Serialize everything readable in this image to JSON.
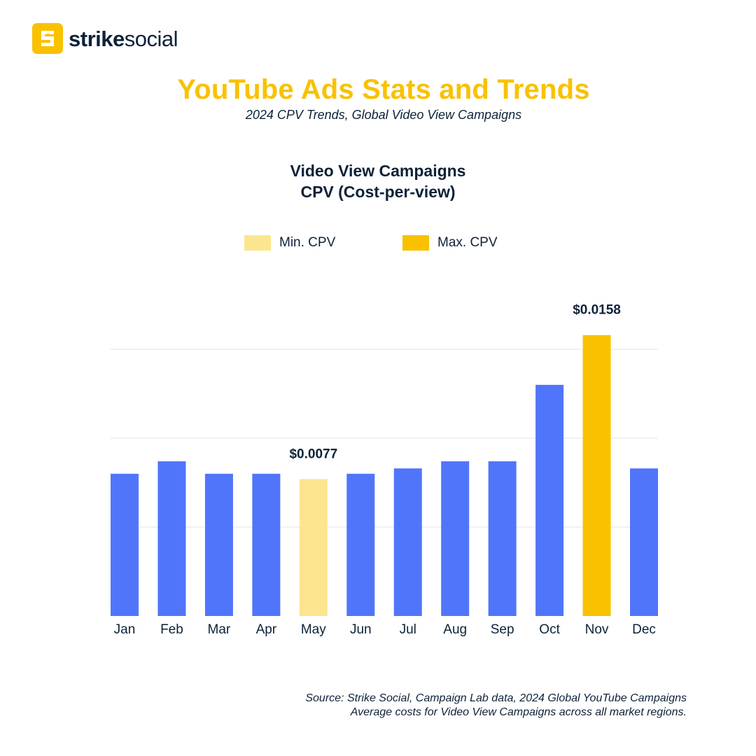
{
  "brand": {
    "name_bold": "strike",
    "name_light": "social"
  },
  "title": "YouTube Ads Stats and Trends",
  "subtitle": "2024 CPV Trends, Global Video View Campaigns",
  "chart_title_line1": "Video View Campaigns",
  "chart_title_line2": "CPV (Cost-per-view)",
  "legend": [
    {
      "label": "Min. CPV",
      "color": "#fce58e"
    },
    {
      "label": "Max. CPV",
      "color": "#f9c100"
    }
  ],
  "colors": {
    "default_bar": "#5075fb",
    "min_bar": "#fce58e",
    "max_bar": "#f9c100",
    "accent": "#f9c100",
    "text": "#0d2238"
  },
  "chart_data": {
    "type": "bar",
    "title": "Video View Campaigns CPV (Cost-per-view)",
    "xlabel": "",
    "ylabel": "",
    "categories": [
      "Jan",
      "Feb",
      "Mar",
      "Apr",
      "May",
      "Jun",
      "Jul",
      "Aug",
      "Sep",
      "Oct",
      "Nov",
      "Dec"
    ],
    "values": [
      0.008,
      0.0087,
      0.008,
      0.008,
      0.0077,
      0.008,
      0.0083,
      0.0087,
      0.0087,
      0.013,
      0.0158,
      0.0083
    ],
    "highlight": {
      "min_index": 4,
      "max_index": 10
    },
    "data_labels": [
      {
        "index": 4,
        "text": "$0.0077"
      },
      {
        "index": 10,
        "text": "$0.0158"
      }
    ],
    "ylim": [
      0,
      0.02
    ],
    "gridlines": [
      0.005,
      0.01,
      0.015
    ],
    "grid": true
  },
  "source_line1": "Source: Strike Social, Campaign Lab data, 2024 Global YouTube Campaigns",
  "source_line2": "Average costs for Video View Campaigns across all market regions."
}
